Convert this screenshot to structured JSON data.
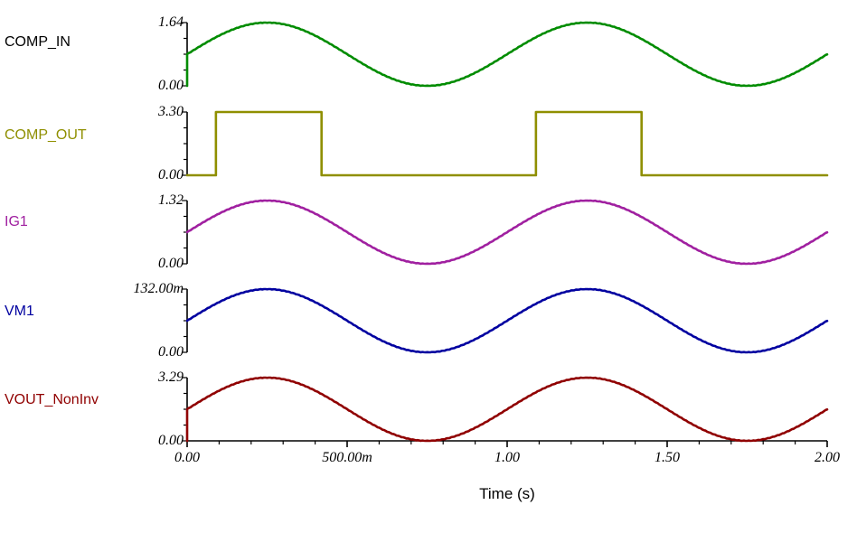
{
  "chart_data": {
    "type": "line",
    "title": "",
    "x_axis": {
      "label": "Time (s)",
      "range_s": [
        0,
        2
      ],
      "tick_values": [
        0,
        0.5,
        1.0,
        1.5,
        2.0
      ],
      "tick_labels": [
        "0.00",
        "500.00m",
        "1.00",
        "1.50",
        "2.00"
      ],
      "minor_tick_step": 0.1
    },
    "plots": [
      {
        "name": "COMP_IN",
        "label_color": "#000000",
        "color": "#008C00",
        "type": "sine",
        "ymax": 1.64,
        "ymax_label": "1.64",
        "ymin_label": "0.00",
        "offset": 0.82,
        "amplitude": 0.82,
        "frequency_hz": 1,
        "start_at_zero": true
      },
      {
        "name": "COMP_OUT",
        "label_color": "#8F8F00",
        "color": "#8F8F00",
        "type": "square",
        "ymax": 3.3,
        "ymax_label": "3.30",
        "ymin_label": "0.00",
        "high": 3.3,
        "low": 0.0,
        "edges_s": [
          0.09,
          0.42,
          1.09,
          1.42
        ]
      },
      {
        "name": "IG1",
        "label_color": "#A020A0",
        "color": "#A020A0",
        "type": "sine",
        "ymax": 1.32,
        "ymax_label": "1.32",
        "ymin_label": "0.00",
        "offset": 0.66,
        "amplitude": 0.66,
        "frequency_hz": 1,
        "start_at_zero": false
      },
      {
        "name": "VM1",
        "label_color": "#0000A0",
        "color": "#0000A0",
        "type": "sine",
        "ymax": 0.132,
        "ymax_label": "132.00m",
        "ymin_label": "0.00",
        "offset": 0.066,
        "amplitude": 0.066,
        "frequency_hz": 1,
        "start_at_zero": false
      },
      {
        "name": "VOUT_NonInv",
        "label_color": "#900000",
        "color": "#900000",
        "type": "sine",
        "ymax": 3.29,
        "ymax_label": "3.29",
        "ymin_label": "0.00",
        "offset": 1.645,
        "amplitude": 1.645,
        "frequency_hz": 1,
        "start_at_zero": true
      }
    ]
  }
}
